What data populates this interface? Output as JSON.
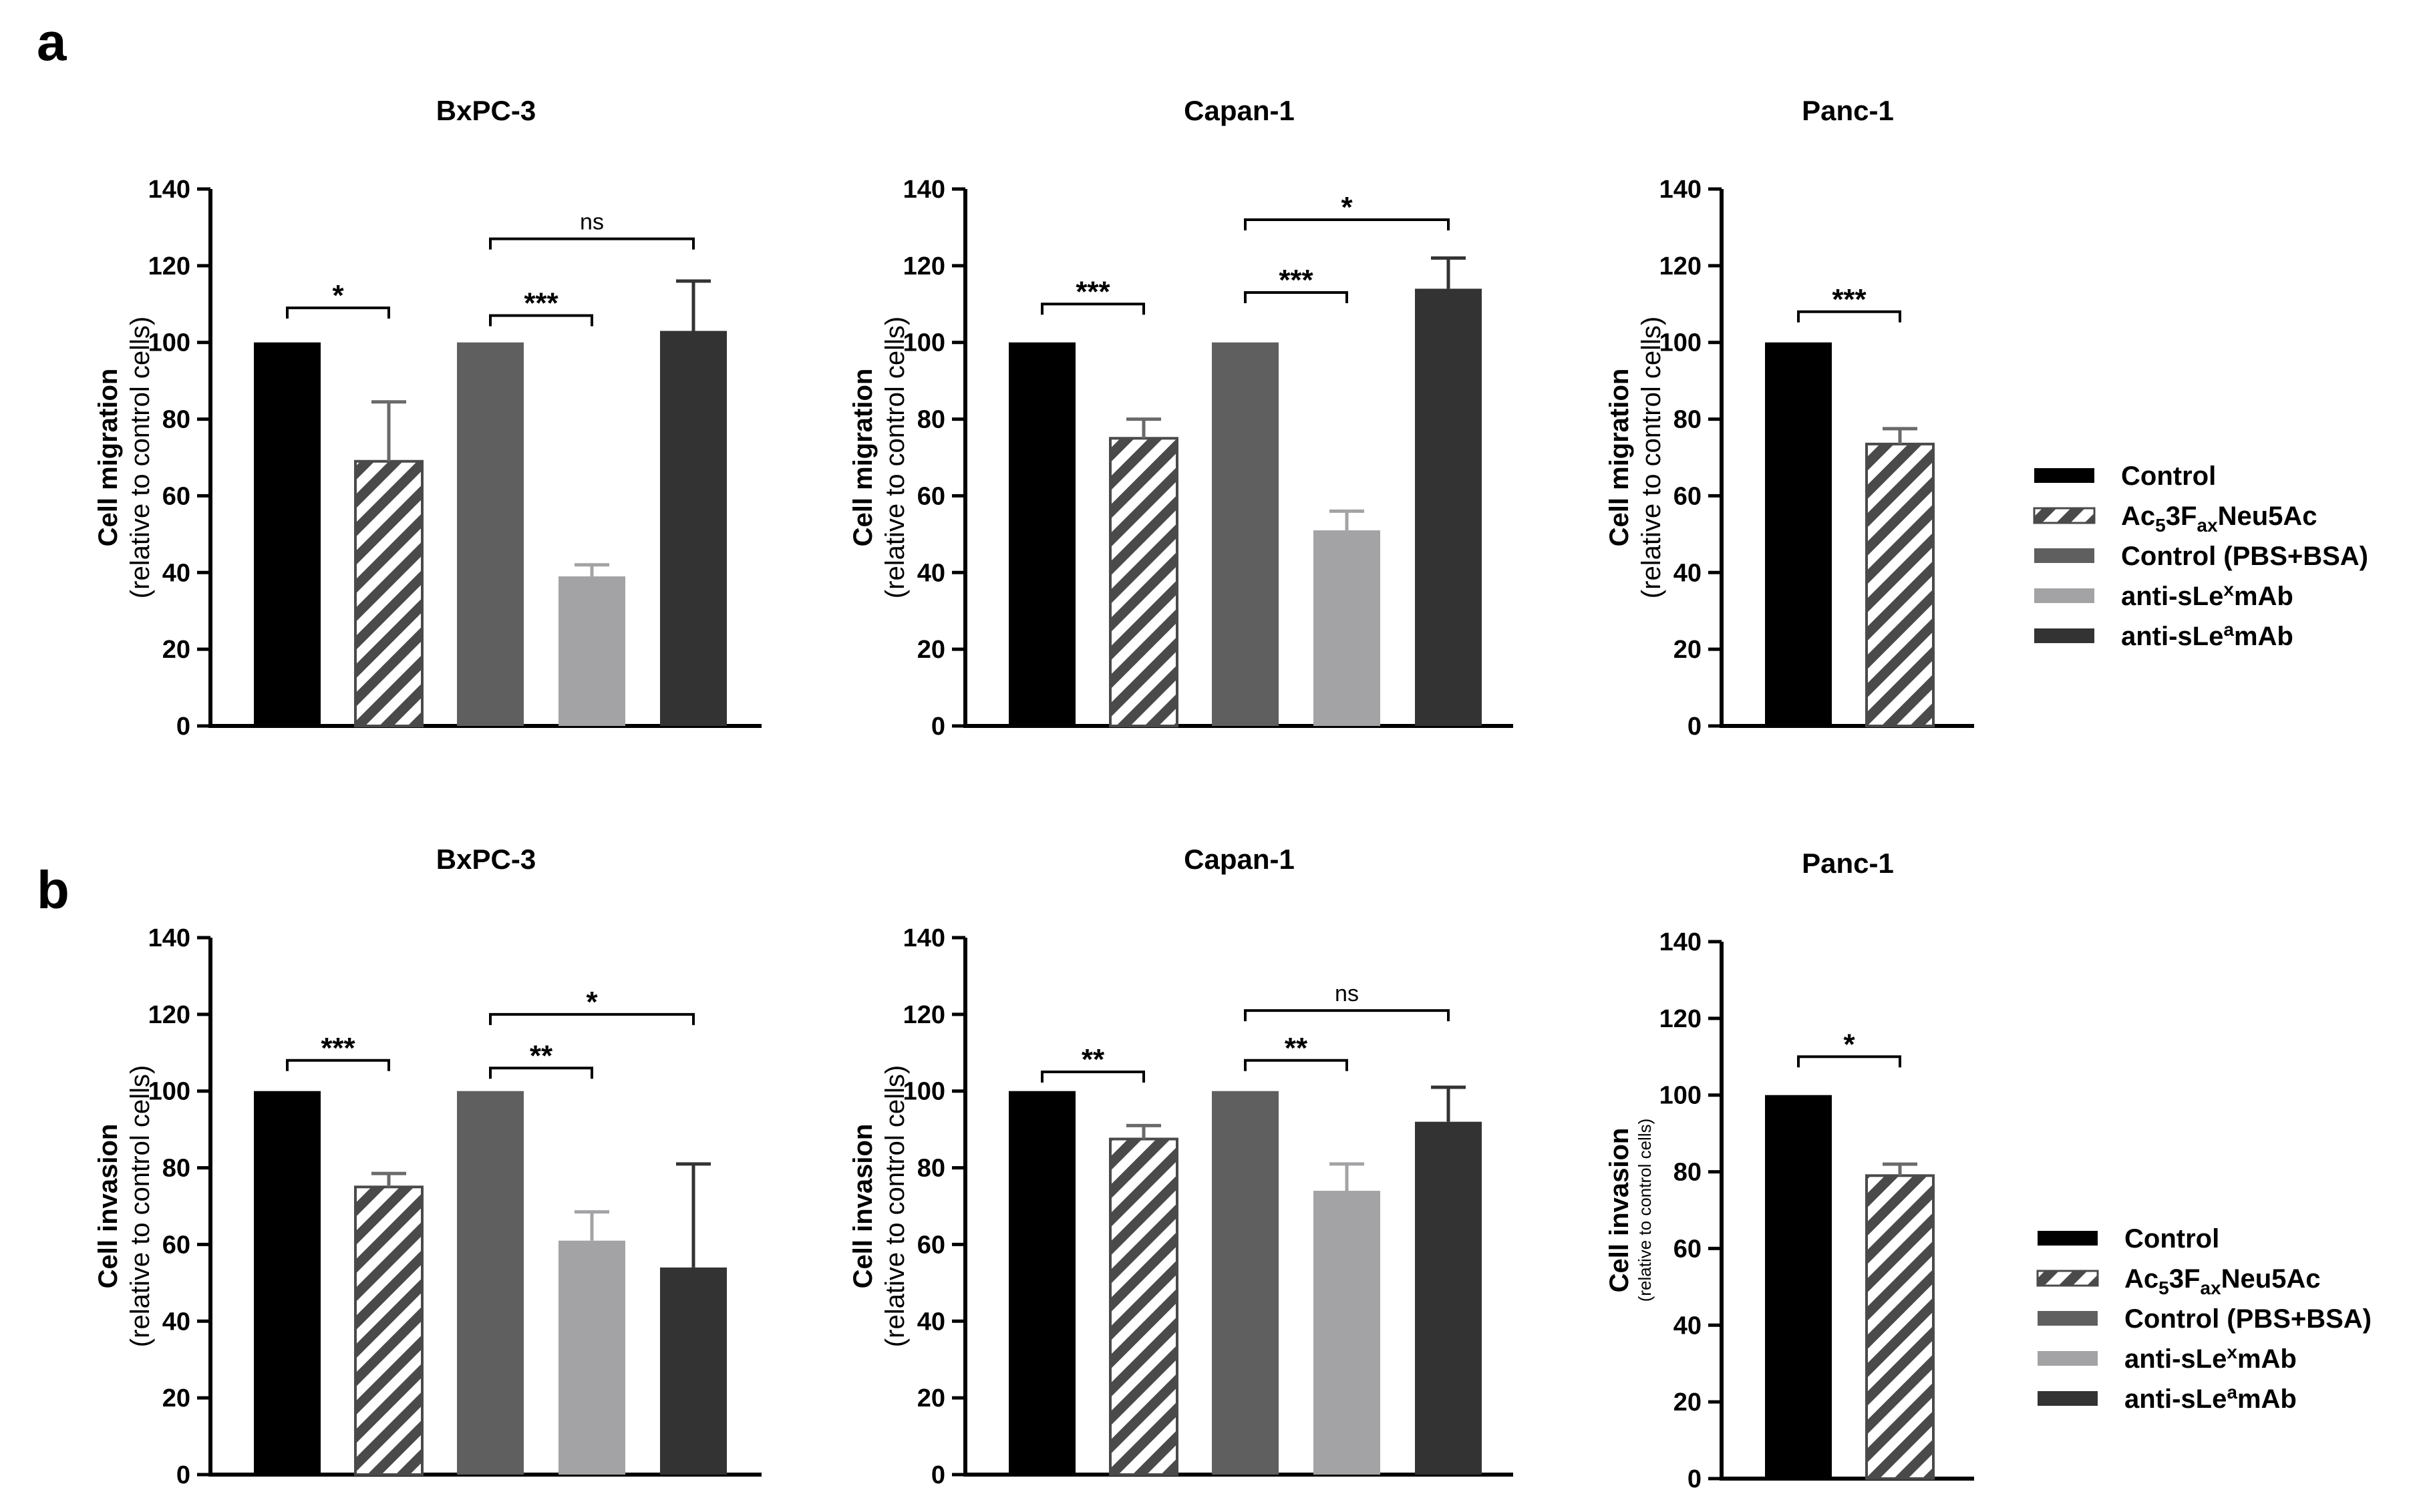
{
  "figure": {
    "panel_labels": [
      "a",
      "b"
    ]
  },
  "legend": [
    {
      "name": "Control",
      "color": "#000000",
      "pattern": "solid",
      "parts": [
        {
          "t": "Control"
        }
      ]
    },
    {
      "name": "Ac5 3Fax Neu5Ac",
      "color": "#ffffff",
      "pattern": "hatch",
      "parts": [
        {
          "t": "Ac"
        },
        {
          "t": "5",
          "sub": true
        },
        {
          "t": "3F"
        },
        {
          "t": "ax",
          "sub": true
        },
        {
          "t": "Neu5Ac"
        }
      ]
    },
    {
      "name": "Control (PBS+BSA)",
      "color": "#5f5f5f",
      "pattern": "solid",
      "parts": [
        {
          "t": "Control (PBS+BSA)"
        }
      ]
    },
    {
      "name": "anti-sLex mAb",
      "color": "#a3a3a6",
      "pattern": "solid",
      "parts": [
        {
          "t": "anti-sLe"
        },
        {
          "t": "x",
          "sup": true
        },
        {
          "t": "mAb"
        }
      ]
    },
    {
      "name": "anti-sLea mAb",
      "color": "#333333",
      "pattern": "solid",
      "parts": [
        {
          "t": "anti-sLe"
        },
        {
          "t": "a",
          "sup": true
        },
        {
          "t": "mAb"
        }
      ]
    }
  ],
  "chart_data": [
    {
      "type": "bar",
      "panel": "a",
      "title": "BxPC-3",
      "ylabel": "Cell migration",
      "ylabel_sub": "(relative to control cells)",
      "ylim": [
        0,
        140
      ],
      "yticks": [
        0,
        20,
        40,
        60,
        80,
        100,
        120,
        140
      ],
      "categories": [
        "Control",
        "Ac5 3Fax Neu5Ac",
        "Control (PBS+BSA)",
        "anti-sLex mAb",
        "anti-sLea mAb"
      ],
      "values": [
        100,
        69,
        100,
        39,
        103
      ],
      "errors": [
        0,
        15.5,
        0,
        3,
        13
      ],
      "significance": [
        {
          "from": 0,
          "to": 1,
          "label": "*",
          "y": 109
        },
        {
          "from": 2,
          "to": 3,
          "label": "***",
          "y": 107
        },
        {
          "from": 2,
          "to": 4,
          "label": "ns",
          "y": 127
        }
      ]
    },
    {
      "type": "bar",
      "panel": "a",
      "title": "Capan-1",
      "ylabel": "Cell migration",
      "ylabel_sub": "(relative to control cells)",
      "ylim": [
        0,
        140
      ],
      "yticks": [
        0,
        20,
        40,
        60,
        80,
        100,
        120,
        140
      ],
      "categories": [
        "Control",
        "Ac5 3Fax Neu5Ac",
        "Control (PBS+BSA)",
        "anti-sLex mAb",
        "anti-sLea mAb"
      ],
      "values": [
        100,
        75,
        100,
        51,
        114
      ],
      "errors": [
        0,
        5,
        0,
        5,
        8
      ],
      "significance": [
        {
          "from": 0,
          "to": 1,
          "label": "***",
          "y": 110
        },
        {
          "from": 2,
          "to": 3,
          "label": "***",
          "y": 113
        },
        {
          "from": 2,
          "to": 4,
          "label": "*",
          "y": 132
        }
      ]
    },
    {
      "type": "bar",
      "panel": "a",
      "title": "Panc-1",
      "ylabel": "Cell migration",
      "ylabel_sub": "(relative to control cells)",
      "ylim": [
        0,
        140
      ],
      "yticks": [
        0,
        20,
        40,
        60,
        80,
        100,
        120,
        140
      ],
      "categories": [
        "Control",
        "Ac5 3Fax Neu5Ac"
      ],
      "values": [
        100,
        73.5
      ],
      "errors": [
        0,
        4
      ],
      "significance": [
        {
          "from": 0,
          "to": 1,
          "label": "***",
          "y": 108
        }
      ]
    },
    {
      "type": "bar",
      "panel": "b",
      "title": "BxPC-3",
      "ylabel": "Cell invasion",
      "ylabel_sub": "(relative to control cells)",
      "ylim": [
        0,
        140
      ],
      "yticks": [
        0,
        20,
        40,
        60,
        80,
        100,
        120,
        140
      ],
      "categories": [
        "Control",
        "Ac5 3Fax Neu5Ac",
        "Control (PBS+BSA)",
        "anti-sLex mAb",
        "anti-sLea mAb"
      ],
      "values": [
        100,
        75,
        100,
        61,
        54
      ],
      "errors": [
        0,
        3.5,
        0,
        7.5,
        27
      ],
      "significance": [
        {
          "from": 0,
          "to": 1,
          "label": "***",
          "y": 108
        },
        {
          "from": 2,
          "to": 3,
          "label": "**",
          "y": 106
        },
        {
          "from": 2,
          "to": 4,
          "label": "*",
          "y": 120
        }
      ]
    },
    {
      "type": "bar",
      "panel": "b",
      "title": "Capan-1",
      "ylabel": "Cell invasion",
      "ylabel_sub": "(relative to control cells)",
      "ylim": [
        0,
        140
      ],
      "yticks": [
        0,
        20,
        40,
        60,
        80,
        100,
        120,
        140
      ],
      "categories": [
        "Control",
        "Ac5 3Fax Neu5Ac",
        "Control (PBS+BSA)",
        "anti-sLex mAb",
        "anti-sLea mAb"
      ],
      "values": [
        100,
        87.5,
        100,
        74,
        92
      ],
      "errors": [
        0,
        3.5,
        0,
        7,
        9
      ],
      "significance": [
        {
          "from": 0,
          "to": 1,
          "label": "**",
          "y": 105
        },
        {
          "from": 2,
          "to": 3,
          "label": "**",
          "y": 108
        },
        {
          "from": 2,
          "to": 4,
          "label": "ns",
          "y": 121
        }
      ]
    },
    {
      "type": "bar",
      "panel": "b",
      "title": "Panc-1",
      "ylabel": "Cell invasion",
      "ylabel_sub": "(relative to control cells)",
      "ylim": [
        0,
        140
      ],
      "yticks": [
        0,
        20,
        40,
        60,
        80,
        100,
        120,
        140
      ],
      "categories": [
        "Control",
        "Ac5 3Fax Neu5Ac"
      ],
      "values": [
        100,
        79
      ],
      "errors": [
        0,
        3
      ],
      "significance": [
        {
          "from": 0,
          "to": 1,
          "label": "*",
          "y": 110
        }
      ]
    }
  ]
}
